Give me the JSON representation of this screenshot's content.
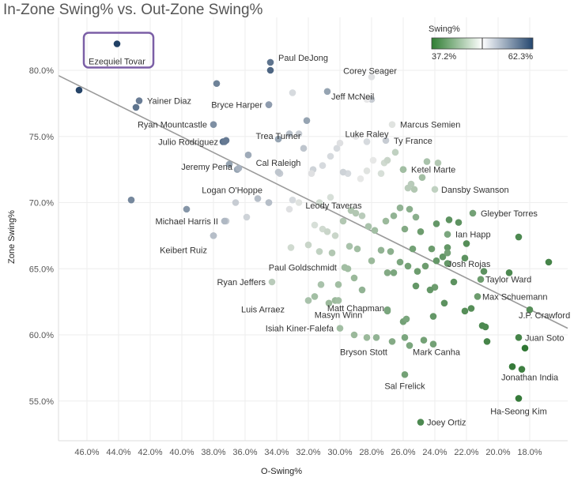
{
  "title": "In-Zone Swing% vs. Out-Zone Swing%",
  "chart_data": {
    "type": "scatter",
    "title": "In-Zone Swing% vs. Out-Zone Swing%",
    "xlabel": "O-Swing%",
    "ylabel": "Zone Swing%",
    "x_reversed": true,
    "xlim": [
      47.8,
      15.6
    ],
    "ylim": [
      52.0,
      84.0
    ],
    "x_ticks": [
      46,
      44,
      42,
      40,
      38,
      36,
      34,
      32,
      30,
      28,
      26,
      24,
      22,
      20,
      18
    ],
    "x_tick_labels": [
      "46.0%",
      "44.0%",
      "42.0%",
      "40.0%",
      "38.0%",
      "36.0%",
      "34.0%",
      "32.0%",
      "30.0%",
      "28.0%",
      "26.0%",
      "24.0%",
      "22.0%",
      "20.0%",
      "18.0%"
    ],
    "y_ticks": [
      55,
      60,
      65,
      70,
      75,
      80
    ],
    "y_tick_labels": [
      "55.0%",
      "60.0%",
      "65.0%",
      "70.0%",
      "75.0%",
      "80.0%"
    ],
    "grid": true,
    "trend_line": {
      "x": [
        47.8,
        15.6
      ],
      "y": [
        79.6,
        60.5
      ]
    },
    "color_legend": {
      "title": "Swing%",
      "min_label": "37.2%",
      "max_label": "62.3%",
      "min_color": "#2e7d32",
      "mid_color": "#ffffff",
      "max_color": "#24466e",
      "placement": "top-right"
    },
    "highlight_box": "Ezequiel Tovar",
    "labeled_points": [
      {
        "label": "Ezequiel Tovar",
        "x": 44.1,
        "y": 82.0,
        "c": 62.3
      },
      {
        "label": "Paul DeJong",
        "x": 34.4,
        "y": 80.6,
        "c": 58.5
      },
      {
        "label": "Yainer Diaz",
        "x": 42.7,
        "y": 77.7,
        "c": 57.8
      },
      {
        "label": "Bryce Harper",
        "x": 34.5,
        "y": 77.4,
        "c": 55.5
      },
      {
        "label": "Corey Seager",
        "x": 28.0,
        "y": 79.5,
        "c": 50.5
      },
      {
        "label": "Jeff McNeil",
        "x": 28.3,
        "y": 77.8,
        "c": 50.0
      },
      {
        "label": "Ryan Mountcastle",
        "x": 38.0,
        "y": 75.9,
        "c": 56.5
      },
      {
        "label": "Trea Turner",
        "x": 33.9,
        "y": 74.8,
        "c": 55.0
      },
      {
        "label": "Luke Raley",
        "x": 28.3,
        "y": 74.6,
        "c": 51.0
      },
      {
        "label": "Marcus Semien",
        "x": 26.7,
        "y": 75.9,
        "c": 49.0
      },
      {
        "label": "Julio Rodriguez",
        "x": 37.3,
        "y": 74.6,
        "c": 58.0
      },
      {
        "label": "Ty France",
        "x": 27.1,
        "y": 74.7,
        "c": 52.0
      },
      {
        "label": "Cal Raleigh",
        "x": 33.9,
        "y": 72.3,
        "c": 52.5
      },
      {
        "label": "Jeremy Pena",
        "x": 36.4,
        "y": 72.6,
        "c": 54.0
      },
      {
        "label": "Ketel Marte",
        "x": 26.0,
        "y": 72.5,
        "c": 45.0
      },
      {
        "label": "Logan O'Hoppe",
        "x": 34.5,
        "y": 70.0,
        "c": 53.0
      },
      {
        "label": "Dansby Swanson",
        "x": 24.0,
        "y": 71.0,
        "c": 47.0
      },
      {
        "label": "Leody Taveras",
        "x": 29.0,
        "y": 69.2,
        "c": 46.0
      },
      {
        "label": "Gleyber Torres",
        "x": 21.6,
        "y": 69.2,
        "c": 42.0
      },
      {
        "label": "Michael Harris II",
        "x": 37.3,
        "y": 68.6,
        "c": 53.5
      },
      {
        "label": "Ian Happ",
        "x": 23.2,
        "y": 67.6,
        "c": 42.5
      },
      {
        "label": "Keibert Ruiz",
        "x": 38.0,
        "y": 67.5,
        "c": 53.0
      },
      {
        "label": "Josh Rojas",
        "x": 23.2,
        "y": 66.2,
        "c": 42.0
      },
      {
        "label": "Paul Goldschmidt",
        "x": 29.7,
        "y": 65.1,
        "c": 45.0
      },
      {
        "label": "Ryan Jeffers",
        "x": 34.3,
        "y": 64.0,
        "c": 46.5
      },
      {
        "label": "Taylor Ward",
        "x": 21.1,
        "y": 64.2,
        "c": 41.5
      },
      {
        "label": "Max Schuemann",
        "x": 21.3,
        "y": 62.9,
        "c": 41.5
      },
      {
        "label": "Luis Arraez",
        "x": 32.0,
        "y": 62.6,
        "c": 45.5
      },
      {
        "label": "Matt Chapman",
        "x": 27.0,
        "y": 61.8,
        "c": 42.5
      },
      {
        "label": "Masyn Winn",
        "x": 30.1,
        "y": 62.6,
        "c": 45.0
      },
      {
        "label": "J.P. Crawford",
        "x": 18.0,
        "y": 61.9,
        "c": 40.0
      },
      {
        "label": "Isiah Kiner-Falefa",
        "x": 30.0,
        "y": 60.5,
        "c": 45.0
      },
      {
        "label": "Juan Soto",
        "x": 18.7,
        "y": 59.8,
        "c": 39.0
      },
      {
        "label": "Bryson Stott",
        "x": 27.7,
        "y": 59.8,
        "c": 44.0
      },
      {
        "label": "Mark Canha",
        "x": 24.1,
        "y": 59.3,
        "c": 42.0
      },
      {
        "label": "Jonathan India",
        "x": 18.5,
        "y": 57.4,
        "c": 38.5
      },
      {
        "label": "Sal Frelick",
        "x": 25.9,
        "y": 57.0,
        "c": 42.0
      },
      {
        "label": "Ha-Seong Kim",
        "x": 18.7,
        "y": 55.2,
        "c": 38.0
      },
      {
        "label": "Joey Ortiz",
        "x": 24.9,
        "y": 53.4,
        "c": 39.5
      }
    ],
    "points": [
      {
        "x": 46.5,
        "y": 78.5,
        "c": 62.0
      },
      {
        "x": 42.9,
        "y": 77.2,
        "c": 58.5
      },
      {
        "x": 43.2,
        "y": 70.2,
        "c": 57.0
      },
      {
        "x": 39.7,
        "y": 69.5,
        "c": 56.0
      },
      {
        "x": 37.8,
        "y": 79.0,
        "c": 57.5
      },
      {
        "x": 37.4,
        "y": 74.6,
        "c": 59.0
      },
      {
        "x": 37.2,
        "y": 74.7,
        "c": 58.0
      },
      {
        "x": 34.4,
        "y": 80.0,
        "c": 59.5
      },
      {
        "x": 34.5,
        "y": 77.4,
        "c": 56.5
      },
      {
        "x": 33.0,
        "y": 78.3,
        "c": 51.0
      },
      {
        "x": 32.1,
        "y": 76.2,
        "c": 55.0
      },
      {
        "x": 33.2,
        "y": 75.2,
        "c": 53.0
      },
      {
        "x": 32.6,
        "y": 75.2,
        "c": 52.0
      },
      {
        "x": 32.3,
        "y": 74.1,
        "c": 52.5
      },
      {
        "x": 35.8,
        "y": 73.6,
        "c": 54.5
      },
      {
        "x": 37.0,
        "y": 72.9,
        "c": 55.0
      },
      {
        "x": 36.5,
        "y": 72.5,
        "c": 55.0
      },
      {
        "x": 35.2,
        "y": 70.3,
        "c": 53.0
      },
      {
        "x": 34.5,
        "y": 70.0,
        "c": 53.0
      },
      {
        "x": 33.8,
        "y": 72.2,
        "c": 52.0
      },
      {
        "x": 36.6,
        "y": 70.0,
        "c": 52.0
      },
      {
        "x": 35.9,
        "y": 68.9,
        "c": 51.5
      },
      {
        "x": 37.2,
        "y": 68.6,
        "c": 52.0
      },
      {
        "x": 38.0,
        "y": 67.5,
        "c": 53.0
      },
      {
        "x": 33.0,
        "y": 70.2,
        "c": 51.0
      },
      {
        "x": 33.2,
        "y": 69.5,
        "c": 50.5
      },
      {
        "x": 31.7,
        "y": 72.5,
        "c": 51.5
      },
      {
        "x": 31.1,
        "y": 72.8,
        "c": 51.0
      },
      {
        "x": 31.8,
        "y": 72.2,
        "c": 50.5
      },
      {
        "x": 30.6,
        "y": 73.5,
        "c": 51.0
      },
      {
        "x": 30.2,
        "y": 74.1,
        "c": 51.0
      },
      {
        "x": 30.0,
        "y": 74.5,
        "c": 50.5
      },
      {
        "x": 29.5,
        "y": 72.2,
        "c": 51.0
      },
      {
        "x": 29.8,
        "y": 72.3,
        "c": 51.5
      },
      {
        "x": 30.8,
        "y": 78.4,
        "c": 55.0
      },
      {
        "x": 28.0,
        "y": 77.8,
        "c": 52.0
      },
      {
        "x": 29.0,
        "y": 75.0,
        "c": 50.0
      },
      {
        "x": 27.9,
        "y": 73.2,
        "c": 49.5
      },
      {
        "x": 28.3,
        "y": 72.4,
        "c": 49.0
      },
      {
        "x": 28.7,
        "y": 71.8,
        "c": 49.5
      },
      {
        "x": 27.4,
        "y": 72.2,
        "c": 48.5
      },
      {
        "x": 27.2,
        "y": 73.0,
        "c": 48.0
      },
      {
        "x": 27.0,
        "y": 73.2,
        "c": 47.5
      },
      {
        "x": 26.5,
        "y": 73.8,
        "c": 47.0
      },
      {
        "x": 26.0,
        "y": 72.5,
        "c": 45.5
      },
      {
        "x": 25.5,
        "y": 71.4,
        "c": 46.5
      },
      {
        "x": 25.3,
        "y": 71.0,
        "c": 46.0
      },
      {
        "x": 24.8,
        "y": 71.9,
        "c": 45.0
      },
      {
        "x": 24.5,
        "y": 73.1,
        "c": 45.5
      },
      {
        "x": 23.8,
        "y": 73.0,
        "c": 46.0
      },
      {
        "x": 25.7,
        "y": 71.1,
        "c": 46.5
      },
      {
        "x": 31.3,
        "y": 70.0,
        "c": 48.0
      },
      {
        "x": 30.6,
        "y": 70.4,
        "c": 48.5
      },
      {
        "x": 32.6,
        "y": 70.0,
        "c": 49.0
      },
      {
        "x": 31.6,
        "y": 68.3,
        "c": 48.5
      },
      {
        "x": 31.1,
        "y": 68.0,
        "c": 48.0
      },
      {
        "x": 30.8,
        "y": 67.8,
        "c": 47.5
      },
      {
        "x": 30.3,
        "y": 67.5,
        "c": 47.5
      },
      {
        "x": 29.8,
        "y": 68.6,
        "c": 46.0
      },
      {
        "x": 29.3,
        "y": 69.4,
        "c": 46.0
      },
      {
        "x": 28.6,
        "y": 69.0,
        "c": 46.5
      },
      {
        "x": 28.2,
        "y": 68.2,
        "c": 45.5
      },
      {
        "x": 27.8,
        "y": 67.9,
        "c": 45.0
      },
      {
        "x": 27.1,
        "y": 68.6,
        "c": 44.5
      },
      {
        "x": 26.6,
        "y": 69.0,
        "c": 44.0
      },
      {
        "x": 26.2,
        "y": 69.6,
        "c": 44.0
      },
      {
        "x": 25.6,
        "y": 69.5,
        "c": 43.5
      },
      {
        "x": 25.2,
        "y": 68.9,
        "c": 43.5
      },
      {
        "x": 25.9,
        "y": 68.0,
        "c": 43.0
      },
      {
        "x": 26.8,
        "y": 66.3,
        "c": 43.5
      },
      {
        "x": 27.4,
        "y": 66.4,
        "c": 44.0
      },
      {
        "x": 28.0,
        "y": 65.6,
        "c": 44.5
      },
      {
        "x": 28.9,
        "y": 66.5,
        "c": 45.0
      },
      {
        "x": 29.4,
        "y": 66.7,
        "c": 45.5
      },
      {
        "x": 30.5,
        "y": 66.2,
        "c": 46.0
      },
      {
        "x": 31.3,
        "y": 66.3,
        "c": 47.0
      },
      {
        "x": 32.0,
        "y": 66.8,
        "c": 47.5
      },
      {
        "x": 33.1,
        "y": 66.6,
        "c": 48.0
      },
      {
        "x": 29.5,
        "y": 65.0,
        "c": 45.0
      },
      {
        "x": 29.1,
        "y": 64.3,
        "c": 44.5
      },
      {
        "x": 28.6,
        "y": 63.4,
        "c": 44.0
      },
      {
        "x": 30.1,
        "y": 63.8,
        "c": 45.0
      },
      {
        "x": 31.2,
        "y": 63.8,
        "c": 45.5
      },
      {
        "x": 31.6,
        "y": 62.9,
        "c": 45.0
      },
      {
        "x": 30.3,
        "y": 62.6,
        "c": 44.5
      },
      {
        "x": 30.7,
        "y": 62.4,
        "c": 44.5
      },
      {
        "x": 27.0,
        "y": 64.7,
        "c": 43.0
      },
      {
        "x": 26.6,
        "y": 64.7,
        "c": 42.5
      },
      {
        "x": 26.2,
        "y": 65.5,
        "c": 42.5
      },
      {
        "x": 25.7,
        "y": 65.2,
        "c": 42.0
      },
      {
        "x": 25.4,
        "y": 66.5,
        "c": 42.0
      },
      {
        "x": 25.1,
        "y": 64.8,
        "c": 41.5
      },
      {
        "x": 24.6,
        "y": 65.2,
        "c": 41.5
      },
      {
        "x": 24.2,
        "y": 66.5,
        "c": 41.5
      },
      {
        "x": 23.9,
        "y": 65.6,
        "c": 41.0
      },
      {
        "x": 23.5,
        "y": 65.9,
        "c": 41.0
      },
      {
        "x": 23.2,
        "y": 66.6,
        "c": 41.0
      },
      {
        "x": 23.2,
        "y": 65.4,
        "c": 41.0
      },
      {
        "x": 24.0,
        "y": 63.6,
        "c": 41.5
      },
      {
        "x": 24.3,
        "y": 63.4,
        "c": 41.0
      },
      {
        "x": 25.2,
        "y": 63.7,
        "c": 41.0
      },
      {
        "x": 22.8,
        "y": 64.0,
        "c": 40.5
      },
      {
        "x": 22.1,
        "y": 65.8,
        "c": 40.5
      },
      {
        "x": 22.0,
        "y": 66.9,
        "c": 40.0
      },
      {
        "x": 23.9,
        "y": 68.4,
        "c": 41.0
      },
      {
        "x": 23.1,
        "y": 68.7,
        "c": 40.5
      },
      {
        "x": 22.5,
        "y": 68.5,
        "c": 40.5
      },
      {
        "x": 24.9,
        "y": 67.8,
        "c": 41.5
      },
      {
        "x": 27.0,
        "y": 61.9,
        "c": 42.5
      },
      {
        "x": 26.0,
        "y": 61.0,
        "c": 42.0
      },
      {
        "x": 25.8,
        "y": 61.2,
        "c": 42.5
      },
      {
        "x": 24.1,
        "y": 61.4,
        "c": 41.0
      },
      {
        "x": 23.4,
        "y": 62.4,
        "c": 40.5
      },
      {
        "x": 22.1,
        "y": 61.8,
        "c": 40.0
      },
      {
        "x": 21.7,
        "y": 62.0,
        "c": 40.0
      },
      {
        "x": 21.0,
        "y": 60.7,
        "c": 39.5
      },
      {
        "x": 20.8,
        "y": 60.6,
        "c": 39.5
      },
      {
        "x": 20.7,
        "y": 59.5,
        "c": 39.0
      },
      {
        "x": 20.9,
        "y": 64.8,
        "c": 40.5
      },
      {
        "x": 19.3,
        "y": 64.7,
        "c": 39.5
      },
      {
        "x": 18.3,
        "y": 59.0,
        "c": 37.5
      },
      {
        "x": 18.7,
        "y": 67.4,
        "c": 39.5
      },
      {
        "x": 16.8,
        "y": 65.5,
        "c": 39.0
      },
      {
        "x": 19.1,
        "y": 57.6,
        "c": 38.0
      },
      {
        "x": 26.7,
        "y": 59.5,
        "c": 43.0
      },
      {
        "x": 25.9,
        "y": 59.8,
        "c": 42.5
      },
      {
        "x": 25.6,
        "y": 59.2,
        "c": 42.5
      },
      {
        "x": 24.7,
        "y": 59.6,
        "c": 42.0
      },
      {
        "x": 28.3,
        "y": 59.8,
        "c": 44.5
      },
      {
        "x": 29.1,
        "y": 60.0,
        "c": 44.5
      }
    ]
  }
}
